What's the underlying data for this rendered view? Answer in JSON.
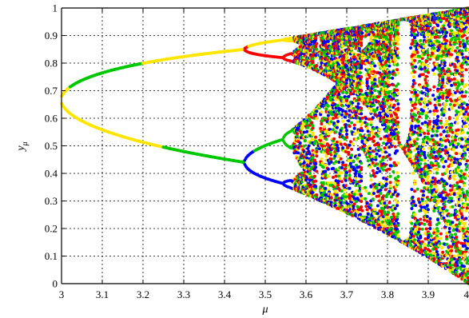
{
  "chart_data": {
    "type": "scatter",
    "title": "",
    "xlabel": "μ",
    "ylabel": {
      "base": "y",
      "subscript": "μ"
    },
    "xlim": [
      3,
      4
    ],
    "ylim": [
      0,
      1
    ],
    "xticks": [
      "3",
      "3.1",
      "3.2",
      "3.3",
      "3.4",
      "3.5",
      "3.6",
      "3.7",
      "3.8",
      "3.9",
      "4"
    ],
    "yticks": [
      "0",
      "0.1",
      "0.2",
      "0.3",
      "0.4",
      "0.5",
      "0.6",
      "0.7",
      "0.8",
      "0.9",
      "1"
    ],
    "grid": true,
    "grid_style": "dotted",
    "legend": "none",
    "colors": [
      "#00c800",
      "#ffe600",
      "#ff0000",
      "#0000ff"
    ],
    "description_of_data": "bifurcation diagram of the logistic map; points colored by iterate index",
    "series": [
      {
        "color": "#00c800",
        "sample_points": [
          [
            3.0,
            0.67
          ],
          [
            3.2,
            0.8
          ],
          [
            3.2,
            0.51
          ],
          [
            3.4,
            0.84
          ],
          [
            3.5,
            0.5
          ],
          [
            3.55,
            0.54
          ],
          [
            3.6,
            0.4
          ],
          [
            3.7,
            0.7
          ],
          [
            3.9,
            0.55
          ]
        ]
      },
      {
        "color": "#ffe600",
        "sample_points": [
          [
            3.1,
            0.74
          ],
          [
            3.1,
            0.58
          ],
          [
            3.25,
            0.81
          ],
          [
            3.35,
            0.83
          ],
          [
            3.45,
            0.85
          ],
          [
            3.6,
            0.89
          ],
          [
            3.8,
            0.6
          ],
          [
            3.95,
            0.85
          ]
        ]
      },
      {
        "color": "#ff0000",
        "sample_points": [
          [
            3.5,
            0.87
          ],
          [
            3.55,
            0.83
          ],
          [
            3.6,
            0.82
          ],
          [
            3.7,
            0.35
          ],
          [
            3.85,
            0.2
          ],
          [
            3.95,
            0.5
          ]
        ]
      },
      {
        "color": "#0000ff",
        "sample_points": [
          [
            3.47,
            0.45
          ],
          [
            3.52,
            0.37
          ],
          [
            3.55,
            0.4
          ],
          [
            3.6,
            0.52
          ],
          [
            3.7,
            0.4
          ],
          [
            3.9,
            0.6
          ]
        ]
      }
    ]
  }
}
